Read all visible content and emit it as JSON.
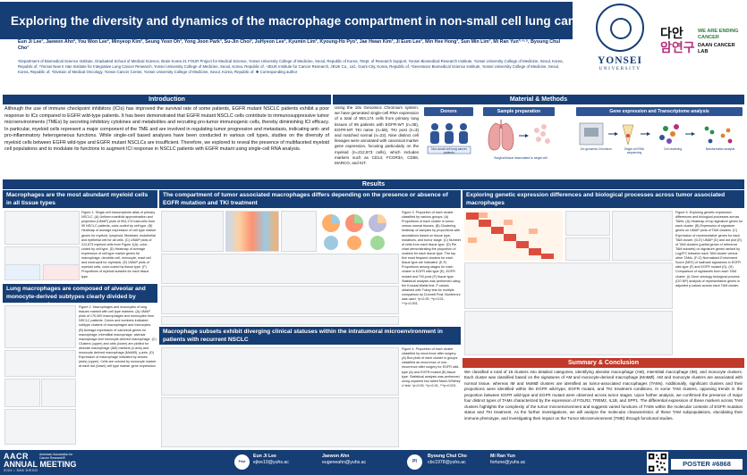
{
  "header": {
    "title": "Exploring the diversity and dynamics of the macrophage compartment in non-small cell lung cancer.",
    "authors": "Eun Ji Lee¹, Jaewon Ahn², You Won Lee², Minyeop Kim³, Seung Yeon Oh³, Yong Joon Park³, Su-Jin Choi³, JuHyeon Lee³, Kyumin Lim³, Kyoung-Ho Pyo³, Jae Hwan Kim³, Ji Eum Lee³, Min Hee Hong³, Sun Min Lim³, Mi Ran Yun³·⁴·⁵, Byoung Chul Cho³",
    "affiliations": "¹Department of Biomedical Science Institute, Graduated School of Medical Science, Brain Korea 21 FOUR Project for Medical Science, Yonsei University College of Medicine, Seoul, Republic of Korea, ²Dept. of Research Support, Yonsei Biomedical Research Institute, Yonsei University College of Medicine, Seoul, Korea, Republic of, ³Yonsei New II Han Institute for Integrative Lung Cancer Research, Yonsei University College of Medicine, Seoul, Korea, Republic of, ⁴JEUK Institute for Cancer Research, JEUK Co., Ltd., Gumi-City, Korea, Republic of, ⁵Severance Biomedical Science Institute, Yonsei University College of Medicine, Seoul, Korea, Republic of, ⁶Division of Medical Oncology, Yonsei Cancer Center, Yonsei University College of Medicine, Seoul, Korea, Republic of. ✱ Corresponding author"
  },
  "logos": {
    "yonsei_word": "YONSEI",
    "yonsei_sub": "UNIVERSITY",
    "daan_kr_line1": "다안",
    "daan_kr_line2": "암연구",
    "daan_en_line1": "WE ARE ENDING CANCER",
    "daan_en_line2": "DAAN CANCER LAB"
  },
  "sections": {
    "introduction": "Introduction",
    "materials_methods": "Material & Methods",
    "results": "Results",
    "summary": "Summary & Conclusion"
  },
  "introduction_text": "Although the use of immune checkpoint inhibitors (ICIs) has improved the survival rate of some patients, EGFR mutant NSCLC patients exhibit a poor response to ICs compared to EGFR wild-type patients. It has been demonstrated that EGFR mutant NSCLC cells contribute to immunosuppressive tumor microenvironments (TMEs) by secreting inhibitory cytokines and metabolites and recruiting pro-tumor immunogenic cells, thereby diminishing ICI efficacy. In particular, myeloid cells represent a major component of the TME and are involved in regulating tumor progression and metastasis, indicating anti- and pro-inflammatory heterogeneous functions. While single-cell based analyses have been conducted in various cell types, studies on the diversity of myeloid cells between EGFR wild-type and EGFR mutant NSCLCs are insufficient. Therefore, we explored to reveal the presence of multifaceted myeloid cell populations and to modulate its functions to augment ICI response in NSCLC patients with EGFR mutant using single-cell RNA analysis.",
  "methods_text": "Using the 10x Genomics Chromium system, we have generated single-cell RNA expression of a total of 904,174 cells from primary lung tissues of 95 patients with EGFR-WT (n=35), EGFR-MT TKI naïve (n=58), TKI post (n=3) and matched normal (n=22). Nine distinct cell lineages were annotated with canonical marker gene expression, focusing particularly on the myeloid (n=212,873 cells), which includes markers such as CD14, FCGR3A, CD68, MARCO, and KIT.",
  "methods_diagram": {
    "step1": "Donors",
    "step2": "Sample preparation",
    "step3": "Gene expression and Transcriptome analysis",
    "donors_caption": "Non-small cell lung cancer patients",
    "prep_caption": "Surgical tissue dissociated to single cell",
    "seq_caption1": "10x genomics Chromium",
    "seq_caption2": "Single cell RNA sequencing",
    "seq_caption3": "Cell clustering",
    "seq_caption4": "Bioinformatics analysis"
  },
  "results": {
    "r1_title": "Macrophages are the most abundant myeloid cells in all tissue types",
    "r1_caption": "Figure 1. Single-cell transcriptome atlas of primary NSCLC. (A) Uniform manifold approximation and projection (UMAP) plots of 904,174 total cells from 95 NSCLC patients, color-coded by cell type. (B) Heatmap of average expression of cell type marker genes for myeloid, lymphoid, fibroblast, endothelial and epithelial cell for all cells. (C) UMAP plots of 212,873 myeloid cells from Figure 1(A), color-coded by cell type. (D) Heatmap of average expression of cell type marker genes for macrophage, dendritic cell, monocyte, mast cell and neutrophil for myeloids. (E) UMAP plots of myeloid cells, color-coded by tissue type. (F) Proportions of myeloid subsets for each tissue type.",
    "r2_title": "Lung macrophages are composed of alveolar and monocyte-derived subtypes clearly divided by respective markers",
    "r2_caption": "Figure 2. Macrophages and monocytes of lung tissues marked with cell type markers. (A) UMAP plots of 170,000 macrophages and monocytes from NSCLC patients. Colors and numbers indicated subtype clusters of macrophages and monocytes. (B) Average expression of canonical genes for macrophage, interstitial macrophage, alveolar macrophage and monocyte-derived macrophage. (C) Clusters (upper) and cells (lower) are plotted for alveolar macrophage (AM) markers (x-axis) and monocyte derived macrophage (MoMØ). y-axis. (D) Expression of macrophage indicated by arrows (dots) (upper). Cells are colored by monocyte marker at each dot (lower) cell type marker gene expression.",
    "r3_title": "The compartment of tumor associated macrophages differs depending on the presence or absence of EGFR mutation and TKI treatment",
    "r3_caption": "Figure 3. Proportion of each cluster classified by various groups. (A) Proportions of each cluster in tumor versus normal tissues. (B) Clustering heatmap of samples by proportions with annotations based on tissue type, mutations, and tumor stage. (C) Number of cells from each tissue type. (D) Pie chart demonstrating the proportion of clusters for each tissue type. The top five most frequent clusters for each tissue type are indicated. (E-F) Proportions among stages for each cluster in EGFR wild-type (E), EGFR mutant and TKI-post (F) tissue type. Statistical analysis was performed using the Kruskal-Wallis test. P-values obtained with Tukey test for multiple comparison by Dunnett Post. Bonferroni was used. *p<0.05, **p<0.01, ***p<0.001.",
    "r4_title": "Macrophage subsets exhibit diverging clinical statuses within the intratumoral microenvironment in patients with recurrent NSCLC",
    "r4_caption": "Figure 4. Proportion of each cluster classified by recurrence after surgery. (A) Box plots of each cluster in groups classified as recurrence or non-recurrence after surgery for EGFR wild-type (A) and EGFR mutant (B) tissue type. Statistical analysis was performed using unpaired two tailed Mann-Whitney U test. *p<0.05, **p<0.01, ***p<0.001.",
    "r5_title": "Exploring genetic expression differences and biological processes across tumor associated macrophages",
    "r5_caption": "Figure 5. Exploring genetic expression differences and biological processes across TAMs. (A) Heatmap of top signature genes for each cluster. (B) Expression of signature genes on UMAP plots of TAM clusters. (C) Expression of representative genes for each TAM cluster. (D-E) UMAP (D) and dot plot (E) of TAM clusters (partial genes of reference TAM subsets) on signature genes ranked by Log2FC between each TAM cluster versus other TAMs. (F-G) Normalized Enrichment Score (NES) of hallmark signatures in EGFR wild-type (F) and EGFR mutant (G). (H) Comparison of signatures from each TAM cluster. (I) Gene ontology biological process (GO BP) analysis of representative genes in adjusted p-values across each TAM cluster."
  },
  "summary_text": "We classified a total of 15 clusters into detailed categories, identifying alveolar macrophage (AM), interstitial macrophage (IM), and monocyte clusters. Each cluster was classified based on the signatures of AM and monocyte-derived macrophage (MoMØ). AM and monocyte clusters are associated with normal tissue, whereas IM and MoMØ clusters are identified as tumor-associated macrophages (TAMs). Additionally, significant clusters and their proportions were identified within the EGFR wild-type, EGFR mutant, and TKI treatment conditions. In some TAM clusters, opposing trends in the proportion between EGFR wild-type and EGFR mutant were observed across tumor stages. Upon further analysis, we confirmed the presence of major four distinct types of TAMs characterized by the expression of FOLR2, TREM2, IL1B, and SPP1. The differential expression of these markers across TAM clusters highlights the complexity of the tumor microenvironment and suggests varied functions of TAMs within the molecular contexts of EGFR mutation status and TKI treatment. As the further investigations, we will analyze the molecular characteristics of these TAM subpopulations, elucidating their immune phenotype, and investigating their impact on the Tumor Microenvironment (TME) through functional studies.",
  "footer": {
    "aacr_line1": "AACR",
    "aacr_line2": "ANNUAL MEETING",
    "aacr_line3": "2024 • SAN DIEGO",
    "aacr_tag": "American Association for Cancer Research®",
    "first_author_badge": "First Author",
    "pi_badge": "PI",
    "contacts": [
      {
        "name": "Eun Ji Lee",
        "email": "ejlee19@yuhs.ac"
      },
      {
        "name": "Jaewon Ahn",
        "email": "eugeneahn@yuhs.ac"
      },
      {
        "name": "Byoung Chul Cho",
        "email": "cbc1978@yuhs.ac"
      },
      {
        "name": "Mi Ran Yun",
        "email": "fortune@yuhs.ac"
      }
    ],
    "poster_number": "POSTER #6868"
  },
  "colors": {
    "brand_navy": "#163d74",
    "accent_red": "#c0392b",
    "heatmap_high": "#d7301f",
    "heatmap_low": "#fff5eb"
  }
}
